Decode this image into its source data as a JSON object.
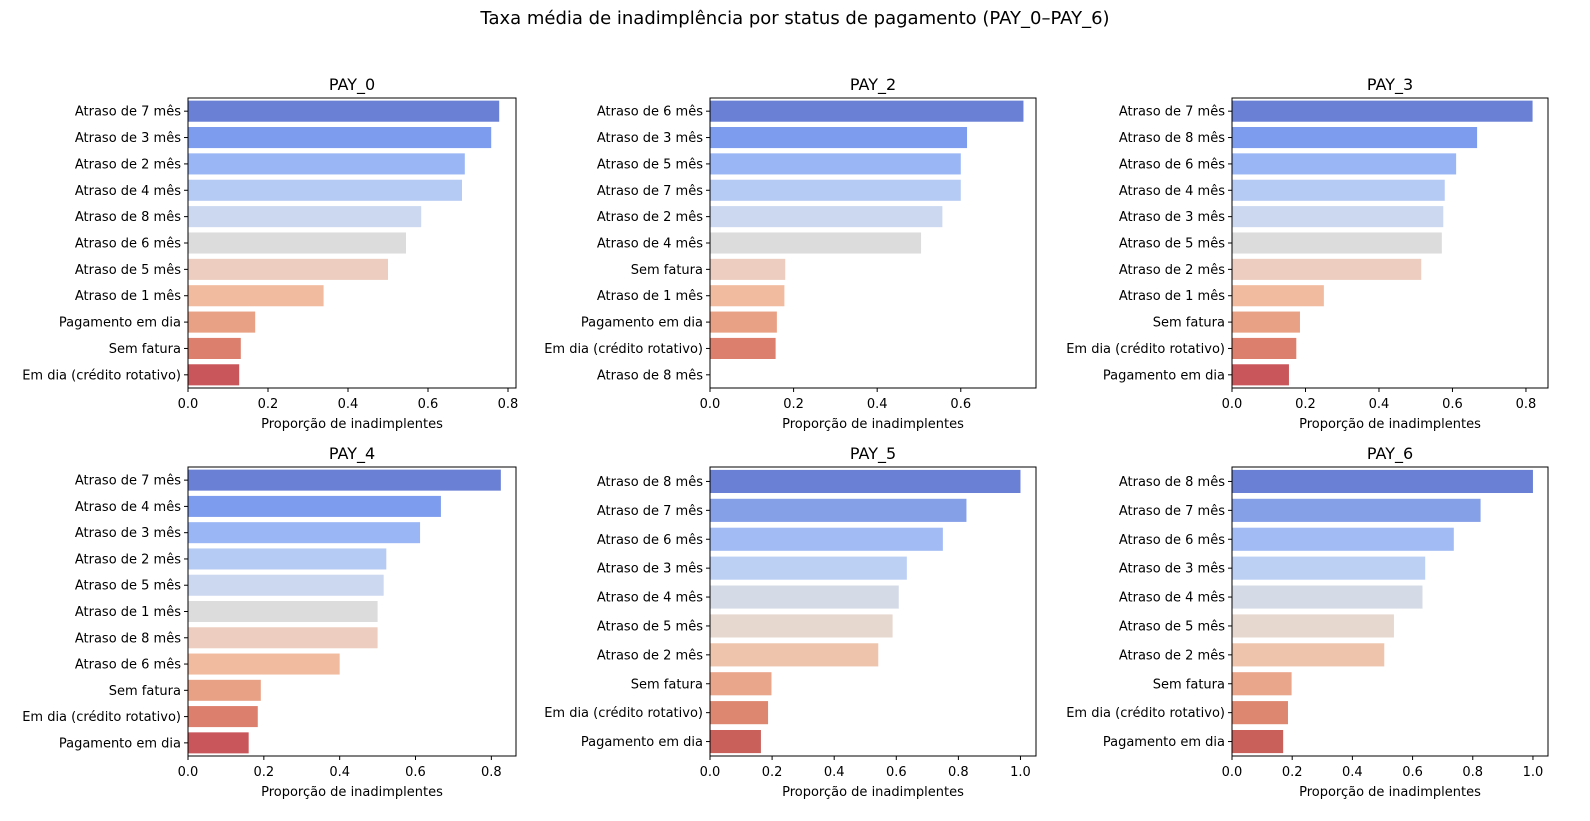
{
  "figure": {
    "title": "Taxa média de inadimplência por status de pagamento (PAY_0–PAY_6)"
  },
  "chart_data": [
    {
      "type": "bar",
      "orientation": "horizontal",
      "title": "PAY_0",
      "xlabel": "Proporção de inadimplentes",
      "xlim": [
        0,
        0.82
      ],
      "xticks": [
        "0.0",
        "0.2",
        "0.4",
        "0.6",
        "0.8"
      ],
      "categories": [
        "Atraso de 7 mês",
        "Atraso de 3 mês",
        "Atraso de 2 mês",
        "Atraso de 4 mês",
        "Atraso de 8 mês",
        "Atraso de 6 mês",
        "Atraso de 5 mês",
        "Atraso de 1 mês",
        "Pagamento em dia",
        "Sem fatura",
        "Em dia (crédito rotativo)"
      ],
      "values": [
        0.778,
        0.758,
        0.692,
        0.685,
        0.583,
        0.545,
        0.5,
        0.339,
        0.168,
        0.132,
        0.128
      ],
      "colors": [
        "#6a80d5",
        "#7e9cee",
        "#9ab6f5",
        "#b6cbf3",
        "#cbd8f0",
        "#dcdcdc",
        "#eccdc0",
        "#f1bba0",
        "#e9a185",
        "#dc7f6d",
        "#c9565a"
      ]
    },
    {
      "type": "bar",
      "orientation": "horizontal",
      "title": "PAY_2",
      "xlabel": "Proporção de inadimplentes",
      "xlim": [
        0,
        0.78
      ],
      "xticks": [
        "0.0",
        "0.2",
        "0.4",
        "0.6"
      ],
      "categories": [
        "Atraso de 6 mês",
        "Atraso de 3 mês",
        "Atraso de 5 mês",
        "Atraso de 7 mês",
        "Atraso de 2 mês",
        "Atraso de 4 mês",
        "Sem fatura",
        "Atraso de 1 mês",
        "Pagamento em dia",
        "Em dia (crédito rotativo)",
        "Atraso de 8 mês"
      ],
      "values": [
        0.75,
        0.615,
        0.6,
        0.6,
        0.556,
        0.505,
        0.18,
        0.178,
        0.16,
        0.157,
        0.0
      ],
      "colors": [
        "#6a80d5",
        "#7e9cee",
        "#9ab6f5",
        "#b6cbf3",
        "#cbd8f0",
        "#dcdcdc",
        "#eccdc0",
        "#f1bba0",
        "#e9a185",
        "#dc7f6d",
        "#c9565a"
      ]
    },
    {
      "type": "bar",
      "orientation": "horizontal",
      "title": "PAY_3",
      "xlabel": "Proporção de inadimplentes",
      "xlim": [
        0,
        0.86
      ],
      "xticks": [
        "0.0",
        "0.2",
        "0.4",
        "0.6",
        "0.8"
      ],
      "categories": [
        "Atraso de 7 mês",
        "Atraso de 8 mês",
        "Atraso de 6 mês",
        "Atraso de 4 mês",
        "Atraso de 3 mês",
        "Atraso de 5 mês",
        "Atraso de 2 mês",
        "Atraso de 1 mês",
        "Sem fatura",
        "Em dia (crédito rotativo)",
        "Pagamento em dia"
      ],
      "values": [
        0.818,
        0.667,
        0.61,
        0.579,
        0.575,
        0.571,
        0.515,
        0.25,
        0.185,
        0.175,
        0.155
      ],
      "colors": [
        "#6a80d5",
        "#7e9cee",
        "#9ab6f5",
        "#b6cbf3",
        "#cbd8f0",
        "#dcdcdc",
        "#eccdc0",
        "#f1bba0",
        "#e9a185",
        "#dc7f6d",
        "#c9565a"
      ]
    },
    {
      "type": "bar",
      "orientation": "horizontal",
      "title": "PAY_4",
      "xlabel": "Proporção de inadimplentes",
      "xlim": [
        0,
        0.865
      ],
      "xticks": [
        "0.0",
        "0.2",
        "0.4",
        "0.6",
        "0.8"
      ],
      "categories": [
        "Atraso de 7 mês",
        "Atraso de 4 mês",
        "Atraso de 3 mês",
        "Atraso de 2 mês",
        "Atraso de 5 mês",
        "Atraso de 1 mês",
        "Atraso de 8 mês",
        "Atraso de 6 mês",
        "Sem fatura",
        "Em dia (crédito rotativo)",
        "Pagamento em dia"
      ],
      "values": [
        0.825,
        0.667,
        0.612,
        0.523,
        0.516,
        0.5,
        0.5,
        0.4,
        0.192,
        0.184,
        0.16
      ],
      "colors": [
        "#6a80d5",
        "#7e9cee",
        "#9ab6f5",
        "#b6cbf3",
        "#cbd8f0",
        "#dcdcdc",
        "#eccdc0",
        "#f1bba0",
        "#e9a185",
        "#dc7f6d",
        "#c9565a"
      ]
    },
    {
      "type": "bar",
      "orientation": "horizontal",
      "title": "PAY_5",
      "xlabel": "Proporção de inadimplentes",
      "xlim": [
        0,
        1.05
      ],
      "xticks": [
        "0.0",
        "0.2",
        "0.4",
        "0.6",
        "0.8",
        "1.0"
      ],
      "categories": [
        "Atraso de 8 mês",
        "Atraso de 7 mês",
        "Atraso de 6 mês",
        "Atraso de 3 mês",
        "Atraso de 4 mês",
        "Atraso de 5 mês",
        "Atraso de 2 mês",
        "Sem fatura",
        "Em dia (crédito rotativo)",
        "Pagamento em dia"
      ],
      "values": [
        1.0,
        0.826,
        0.75,
        0.634,
        0.608,
        0.588,
        0.542,
        0.198,
        0.187,
        0.164
      ],
      "colors": [
        "#6a80d5",
        "#86a0e7",
        "#a2bbf4",
        "#bcd0f4",
        "#d5dbe6",
        "#e6d7cf",
        "#eec4ac",
        "#eaa68a",
        "#de8770",
        "#c9605a"
      ]
    },
    {
      "type": "bar",
      "orientation": "horizontal",
      "title": "PAY_6",
      "xlabel": "Proporção de inadimplentes",
      "xlim": [
        0,
        1.05
      ],
      "xticks": [
        "0.0",
        "0.2",
        "0.4",
        "0.6",
        "0.8",
        "1.0"
      ],
      "categories": [
        "Atraso de 8 mês",
        "Atraso de 7 mês",
        "Atraso de 6 mês",
        "Atraso de 3 mês",
        "Atraso de 4 mês",
        "Atraso de 5 mês",
        "Atraso de 2 mês",
        "Sem fatura",
        "Em dia (crédito rotativo)",
        "Pagamento em dia"
      ],
      "values": [
        1.0,
        0.826,
        0.737,
        0.642,
        0.633,
        0.538,
        0.506,
        0.198,
        0.186,
        0.17
      ],
      "colors": [
        "#6a80d5",
        "#86a0e7",
        "#a2bbf4",
        "#bcd0f4",
        "#d5dbe6",
        "#e6d7cf",
        "#eec4ac",
        "#eaa68a",
        "#de8770",
        "#c9605a"
      ]
    }
  ]
}
